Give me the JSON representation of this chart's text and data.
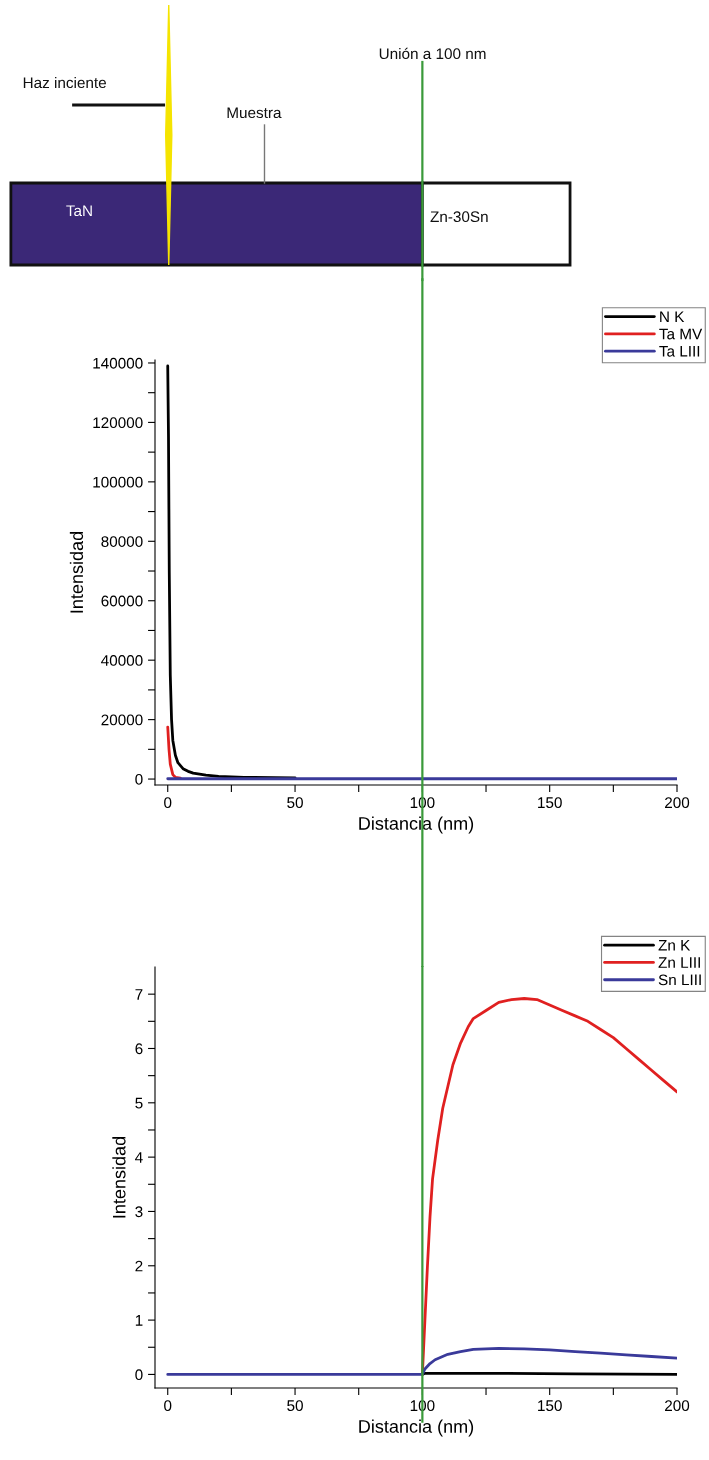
{
  "chart_data": [
    {
      "type": "other",
      "annotations": [
        "Haz inciente",
        "Muestra",
        "TaN",
        "Zn-30Sn",
        "Unión a 100 nm"
      ]
    },
    {
      "type": "line",
      "xlabel": "Distancia (nm)",
      "ylabel": "Intensidad",
      "legend": "top right",
      "xlim": [
        -5,
        200
      ],
      "xticks": [
        0,
        {
          "value": 25,
          "label": null
        },
        50,
        {
          "value": 75,
          "label": null
        },
        100,
        {
          "value": 125,
          "label": null
        },
        150,
        {
          "value": 175,
          "label": null
        },
        200
      ],
      "ylim": [
        -2000,
        141000
      ],
      "yticks": [
        0,
        {
          "value": 10000,
          "label": null
        },
        20000,
        {
          "value": 30000,
          "label": null
        },
        40000,
        {
          "value": 50000,
          "label": null
        },
        60000,
        {
          "value": 70000,
          "label": null
        },
        80000,
        {
          "value": 90000,
          "label": null
        },
        100000,
        {
          "value": 110000,
          "label": null
        },
        120000,
        {
          "value": 130000,
          "label": null
        },
        140000
      ],
      "ref_lines": [
        {
          "axis": "x",
          "value": 100,
          "color": "#3a9a3a"
        }
      ],
      "series": [
        {
          "name": "N K",
          "color": "#000000",
          "x": [
            0,
            0.3,
            0.6,
            1,
            1.5,
            2,
            3,
            4,
            6,
            8,
            10,
            15,
            20,
            30,
            50
          ],
          "values": [
            139000,
            115000,
            70000,
            35000,
            20000,
            13000,
            8000,
            5500,
            3500,
            2600,
            2000,
            1300,
            900,
            600,
            400
          ]
        },
        {
          "name": "Ta MV",
          "color": "#e02020",
          "x": [
            0,
            0.5,
            1,
            2,
            3,
            5
          ],
          "values": [
            17500,
            10000,
            5000,
            1500,
            600,
            300
          ]
        },
        {
          "name": "Ta LIII",
          "color": "#3a3a9a",
          "x": [
            0,
            50,
            100,
            150,
            200
          ],
          "values": [
            100,
            100,
            100,
            100,
            100
          ]
        }
      ]
    },
    {
      "type": "line",
      "xlabel": "Distancia (nm)",
      "ylabel": "Intensidad",
      "legend": "top right",
      "xlim": [
        -5,
        200
      ],
      "xticks": [
        0,
        {
          "value": 25,
          "label": null
        },
        50,
        {
          "value": 75,
          "label": null
        },
        100,
        {
          "value": 125,
          "label": null
        },
        150,
        {
          "value": 175,
          "label": null
        },
        200
      ],
      "ylim": [
        -0.25,
        7.5
      ],
      "yticks": [
        0,
        {
          "value": 0.5,
          "label": null
        },
        1,
        {
          "value": 1.5,
          "label": null
        },
        2,
        {
          "value": 2.5,
          "label": null
        },
        3,
        {
          "value": 3.5,
          "label": null
        },
        4,
        {
          "value": 4.5,
          "label": null
        },
        5,
        {
          "value": 5.5,
          "label": null
        },
        6,
        {
          "value": 6.5,
          "label": null
        },
        7
      ],
      "ref_lines": [
        {
          "axis": "x",
          "value": 100,
          "color": "#3a9a3a"
        }
      ],
      "series": [
        {
          "name": "Zn K",
          "color": "#000000",
          "x": [
            100,
            101,
            130,
            160,
            200
          ],
          "values": [
            0,
            0.02,
            0.02,
            0.01,
            0.0
          ]
        },
        {
          "name": "Zn LIII",
          "color": "#e02020",
          "x": [
            100,
            101,
            102,
            103,
            104,
            106,
            108,
            110,
            112,
            115,
            118,
            120,
            125,
            130,
            135,
            140,
            145,
            150,
            155,
            160,
            165,
            170,
            175,
            180,
            185,
            190,
            195,
            200
          ],
          "values": [
            0,
            1,
            2,
            2.9,
            3.6,
            4.3,
            4.9,
            5.3,
            5.7,
            6.1,
            6.4,
            6.55,
            6.7,
            6.85,
            6.9,
            6.92,
            6.9,
            6.8,
            6.7,
            6.6,
            6.5,
            6.35,
            6.2,
            6.0,
            5.8,
            5.6,
            5.4,
            5.2
          ]
        },
        {
          "name": "Sn LIII",
          "color": "#3a3a9a",
          "x": [
            0,
            50,
            100,
            101,
            103,
            105,
            110,
            115,
            120,
            130,
            140,
            150,
            160,
            170,
            180,
            190,
            200
          ],
          "values": [
            0,
            0,
            0,
            0.1,
            0.2,
            0.27,
            0.37,
            0.42,
            0.46,
            0.48,
            0.47,
            0.45,
            0.42,
            0.39,
            0.36,
            0.33,
            0.3
          ]
        }
      ]
    }
  ]
}
